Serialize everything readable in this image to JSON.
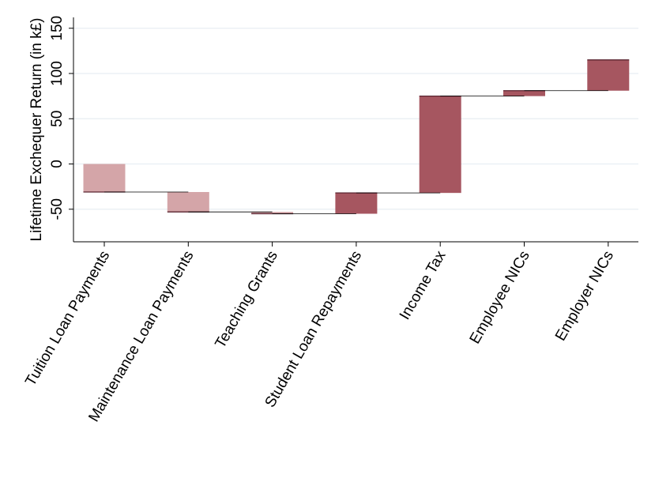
{
  "chart_data": {
    "type": "bar",
    "subtype": "waterfall",
    "title": "",
    "xlabel": "",
    "ylabel": "Lifetime Exchequer Return (in k£)",
    "ylim": [
      -86,
      162
    ],
    "yticks": [
      -50,
      0,
      50,
      100,
      150
    ],
    "grid": true,
    "legend": "none",
    "categories": [
      "Tuition Loan Payments",
      "Maintenance Loan Payments",
      "Teaching Grants",
      "Student Loan Repayments",
      "Income Tax",
      "Employee NICs",
      "Employer NICs"
    ],
    "values": [
      -31,
      -22,
      -2,
      23,
      107,
      6,
      34
    ],
    "cumulative": [
      -31,
      -53,
      -55,
      -32,
      75,
      81,
      115
    ],
    "colors": {
      "negative": "#d4a5a8",
      "positive": "#a65660",
      "bar_edge": "#5a2530",
      "connector": "#000000",
      "grid": "#e8eef3",
      "axis": "#000000"
    }
  }
}
